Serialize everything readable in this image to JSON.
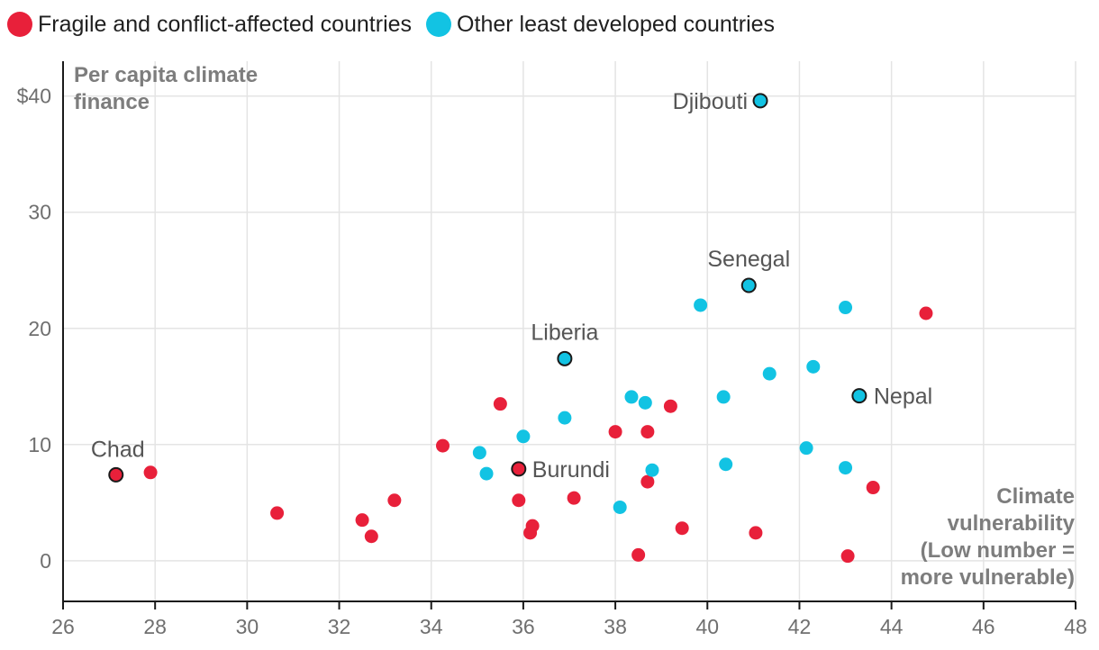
{
  "legend": {
    "fragile": {
      "label": "Fragile and conflict-affected countries",
      "color": "#e8203a"
    },
    "other": {
      "label": "Other least developed countries",
      "color": "#12c3e3"
    }
  },
  "chart_data": {
    "type": "scatter",
    "title": "",
    "xlabel": "Climate vulnerability (Low number = more vulnerable)",
    "ylabel": "Per capita climate finance",
    "xlim": [
      26,
      48
    ],
    "ylim": [
      -3.5,
      43
    ],
    "x_ticks": [
      26,
      28,
      30,
      32,
      34,
      36,
      38,
      40,
      42,
      44,
      46,
      48
    ],
    "y_ticks": [
      0,
      10,
      20,
      30,
      40
    ],
    "y_tick_labels": [
      "0",
      "10",
      "20",
      "30",
      "$40"
    ],
    "axis_titles": {
      "y_lines": [
        "Per capita climate",
        "finance"
      ],
      "x_lines": [
        "Climate",
        "vulnerability",
        "(Low number =",
        "more vulnerable)"
      ]
    },
    "series": [
      {
        "name": "Fragile and conflict-affected countries",
        "color": "#e8203a",
        "points": [
          {
            "x": 27.15,
            "y": 7.4,
            "label": "Chad"
          },
          {
            "x": 27.9,
            "y": 7.6
          },
          {
            "x": 30.65,
            "y": 4.1
          },
          {
            "x": 32.5,
            "y": 3.5
          },
          {
            "x": 32.7,
            "y": 2.1
          },
          {
            "x": 33.2,
            "y": 5.2
          },
          {
            "x": 34.25,
            "y": 9.9
          },
          {
            "x": 35.5,
            "y": 13.5
          },
          {
            "x": 35.9,
            "y": 7.9,
            "label": "Burundi"
          },
          {
            "x": 35.9,
            "y": 5.2
          },
          {
            "x": 36.2,
            "y": 3.0
          },
          {
            "x": 36.15,
            "y": 2.4
          },
          {
            "x": 37.1,
            "y": 5.4
          },
          {
            "x": 38.0,
            "y": 11.1
          },
          {
            "x": 38.7,
            "y": 11.1
          },
          {
            "x": 38.7,
            "y": 6.8
          },
          {
            "x": 38.5,
            "y": 0.5
          },
          {
            "x": 39.2,
            "y": 13.3
          },
          {
            "x": 39.45,
            "y": 2.8
          },
          {
            "x": 41.05,
            "y": 2.4
          },
          {
            "x": 43.05,
            "y": 0.4
          },
          {
            "x": 43.6,
            "y": 6.3
          },
          {
            "x": 44.75,
            "y": 21.3
          }
        ]
      },
      {
        "name": "Other least developed countries",
        "color": "#12c3e3",
        "points": [
          {
            "x": 35.05,
            "y": 9.3
          },
          {
            "x": 35.2,
            "y": 7.5
          },
          {
            "x": 36.0,
            "y": 10.7
          },
          {
            "x": 36.9,
            "y": 12.3
          },
          {
            "x": 36.9,
            "y": 17.4,
            "label": "Liberia"
          },
          {
            "x": 38.1,
            "y": 4.6
          },
          {
            "x": 38.35,
            "y": 14.1
          },
          {
            "x": 38.65,
            "y": 13.6
          },
          {
            "x": 38.8,
            "y": 7.8
          },
          {
            "x": 39.85,
            "y": 22.0
          },
          {
            "x": 40.35,
            "y": 14.1
          },
          {
            "x": 40.4,
            "y": 8.3
          },
          {
            "x": 40.9,
            "y": 23.7,
            "label": "Senegal"
          },
          {
            "x": 41.15,
            "y": 39.6,
            "label": "Djibouti"
          },
          {
            "x": 41.35,
            "y": 16.1
          },
          {
            "x": 42.15,
            "y": 9.7
          },
          {
            "x": 42.3,
            "y": 16.7
          },
          {
            "x": 43.0,
            "y": 21.8
          },
          {
            "x": 43.0,
            "y": 8.0
          },
          {
            "x": 43.3,
            "y": 14.2,
            "label": "Nepal"
          }
        ]
      }
    ]
  }
}
